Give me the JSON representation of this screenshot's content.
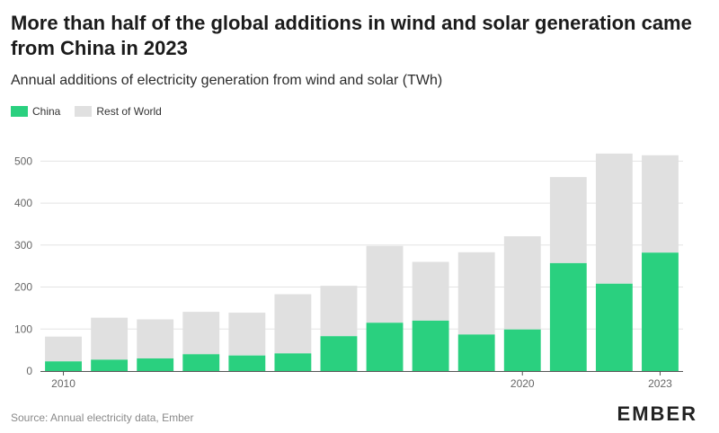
{
  "header": {
    "title": "More than half of the global additions in wind and solar generation came from China in 2023",
    "subtitle": "Annual additions of electricity generation from wind and solar (TWh)"
  },
  "legend": {
    "china": "China",
    "rest": "Rest of World"
  },
  "colors": {
    "china": "#2ad07f",
    "rest": "#e0e0e0",
    "grid": "#e4e4e4",
    "axis": "#555555"
  },
  "footer": {
    "source": "Source: Annual electricity data, Ember",
    "logo": "EMBER"
  },
  "chart_data": {
    "type": "bar",
    "stacked": true,
    "categories": [
      "2010",
      "2011",
      "2012",
      "2013",
      "2014",
      "2015",
      "2016",
      "2017",
      "2018",
      "2019",
      "2020",
      "2021",
      "2022",
      "2023"
    ],
    "x_tick_labels": {
      "2010": "2010",
      "2020": "2020",
      "2023": "2023"
    },
    "series": [
      {
        "name": "China",
        "values": [
          23,
          27,
          30,
          40,
          37,
          42,
          83,
          115,
          120,
          87,
          99,
          257,
          208,
          282
        ]
      },
      {
        "name": "Rest of World",
        "values": [
          59,
          100,
          93,
          101,
          102,
          141,
          120,
          183,
          140,
          196,
          222,
          205,
          310,
          232
        ]
      }
    ],
    "totals": [
      82,
      127,
      123,
      141,
      139,
      183,
      203,
      298,
      260,
      283,
      321,
      462,
      518,
      514
    ],
    "ylim": [
      0,
      520
    ],
    "y_ticks": [
      0,
      100,
      200,
      300,
      400,
      500
    ],
    "grid": true,
    "legend_position": "top-left"
  }
}
